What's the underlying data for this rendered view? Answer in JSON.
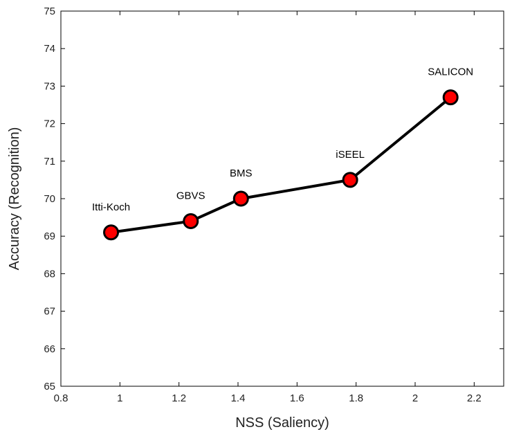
{
  "chart_data": {
    "type": "line",
    "title": "",
    "xlabel": "NSS (Saliency)",
    "ylabel": "Accuracy (Recognition)",
    "xlim": [
      0.8,
      2.3
    ],
    "ylim": [
      65,
      75
    ],
    "xticks": [
      0.8,
      1,
      1.2,
      1.4,
      1.6,
      1.8,
      2,
      2.2
    ],
    "xtick_labels": [
      "0.8",
      "1",
      "1.2",
      "1.4",
      "1.6",
      "1.8",
      "2",
      "2.2"
    ],
    "yticks": [
      65,
      66,
      67,
      68,
      69,
      70,
      71,
      72,
      73,
      74,
      75
    ],
    "ytick_labels": [
      "65",
      "66",
      "67",
      "68",
      "69",
      "70",
      "71",
      "72",
      "73",
      "74",
      "75"
    ],
    "grid": false,
    "legend": "none",
    "line_color": "#000000",
    "marker_fill": "#ff0000",
    "marker_edge": "#000000",
    "points": [
      {
        "label": "Itti-Koch",
        "x": 0.97,
        "y": 69.1
      },
      {
        "label": "GBVS",
        "x": 1.24,
        "y": 69.4
      },
      {
        "label": "BMS",
        "x": 1.41,
        "y": 70.0
      },
      {
        "label": "iSEEL",
        "x": 1.78,
        "y": 70.5
      },
      {
        "label": "SALICON",
        "x": 2.12,
        "y": 72.7
      }
    ]
  }
}
